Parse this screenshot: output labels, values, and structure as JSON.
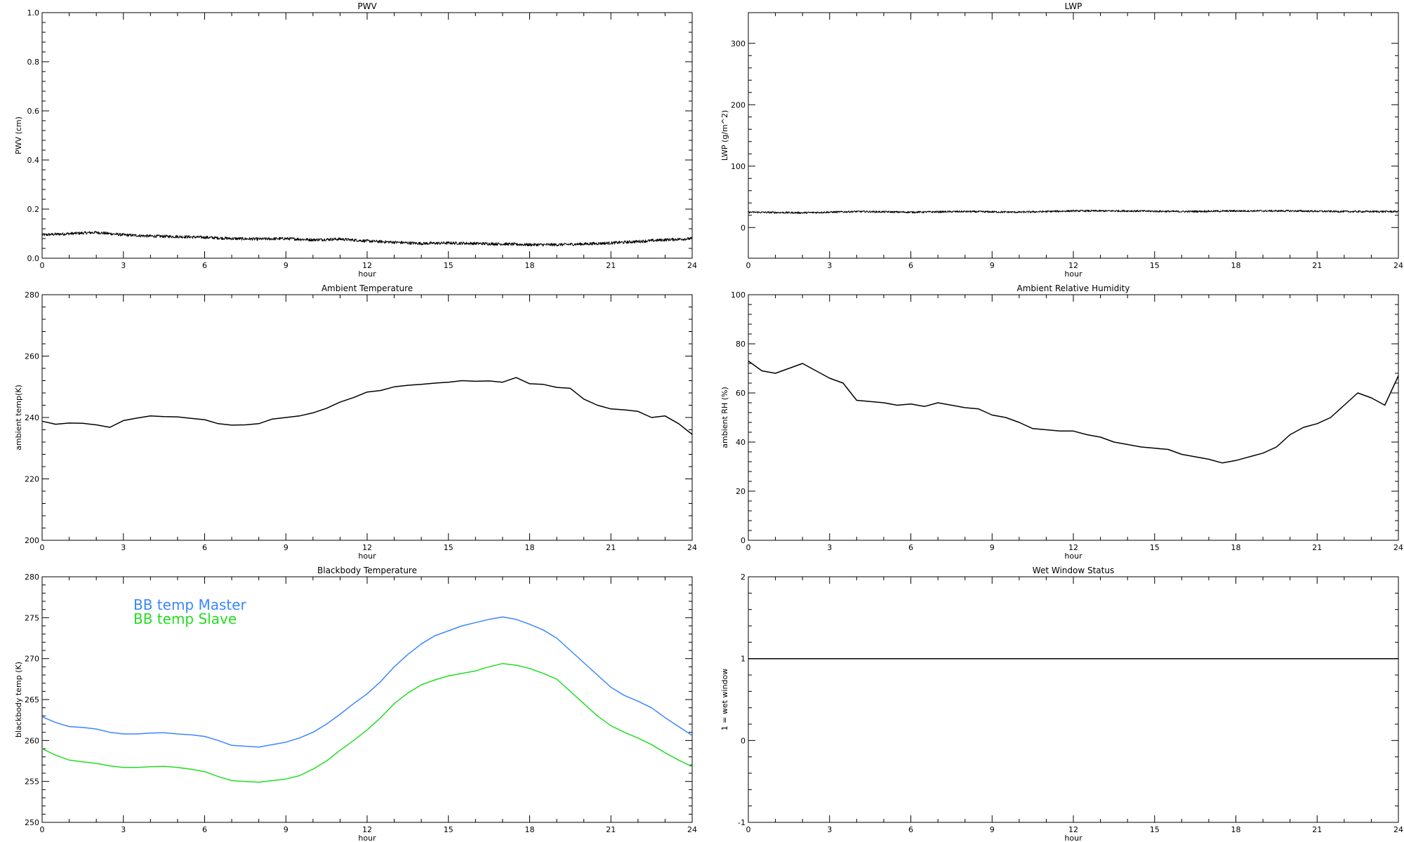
{
  "chart_data": [
    {
      "id": "pwv",
      "type": "line",
      "title": "PWV",
      "xlabel": "hour",
      "ylabel": "PWV (cm)",
      "xlim": [
        0,
        24
      ],
      "ylim": [
        0,
        1.0
      ],
      "xticks": [
        0,
        3,
        6,
        9,
        12,
        15,
        18,
        21,
        24
      ],
      "yticks": [
        "0.0",
        "0.2",
        "0.4",
        "0.6",
        "0.8",
        "1.0"
      ],
      "series": [
        {
          "color": "#000000",
          "noise": 0.006,
          "x": [
            0,
            1,
            2,
            2.5,
            3,
            4,
            5,
            6,
            7,
            8,
            9,
            10,
            11,
            12,
            13,
            14,
            15,
            16,
            17,
            18,
            19,
            20,
            21,
            22,
            23,
            24
          ],
          "y": [
            0.095,
            0.1,
            0.105,
            0.1,
            0.095,
            0.09,
            0.088,
            0.085,
            0.08,
            0.078,
            0.08,
            0.075,
            0.078,
            0.07,
            0.065,
            0.06,
            0.062,
            0.06,
            0.058,
            0.055,
            0.055,
            0.058,
            0.062,
            0.068,
            0.075,
            0.08
          ]
        }
      ]
    },
    {
      "id": "lwp",
      "type": "line",
      "title": "LWP",
      "xlabel": "hour",
      "ylabel": "LWP (g/m^2)",
      "xlim": [
        0,
        24
      ],
      "ylim": [
        -50,
        350
      ],
      "xticks": [
        0,
        3,
        6,
        9,
        12,
        15,
        18,
        21,
        24
      ],
      "yticks": [
        "0",
        "100",
        "200",
        "300"
      ],
      "series": [
        {
          "color": "#000000",
          "noise": 1.5,
          "x": [
            0,
            2,
            4,
            6,
            8,
            10,
            12,
            14,
            16,
            18,
            20,
            22,
            24
          ],
          "y": [
            25,
            24,
            26,
            25,
            26,
            25,
            27,
            27,
            26,
            27,
            27,
            26,
            26
          ]
        }
      ]
    },
    {
      "id": "ambient-temp",
      "type": "line",
      "title": "Ambient Temperature",
      "xlabel": "hour",
      "ylabel": "ambient temp(K)",
      "xlim": [
        0,
        24
      ],
      "ylim": [
        200,
        280
      ],
      "xticks": [
        0,
        3,
        6,
        9,
        12,
        15,
        18,
        21,
        24
      ],
      "yticks": [
        "200",
        "220",
        "240",
        "260",
        "280"
      ],
      "series": [
        {
          "color": "#000000",
          "noise": 0,
          "x": [
            0,
            0.5,
            1,
            1.5,
            2,
            2.5,
            3,
            3.5,
            4,
            4.5,
            5,
            5.5,
            6,
            6.5,
            7,
            7.5,
            8,
            8.5,
            9,
            9.5,
            10,
            10.5,
            11,
            11.5,
            12,
            12.5,
            13,
            13.5,
            14,
            14.5,
            15,
            15.5,
            16,
            16.5,
            17,
            17.5,
            18,
            18.5,
            19,
            19.5,
            20,
            20.5,
            21,
            21.5,
            22,
            22.5,
            23,
            23.5,
            24
          ],
          "y": [
            238.8,
            237.8,
            238.2,
            238.1,
            237.6,
            236.8,
            239.0,
            239.8,
            240.5,
            240.3,
            240.2,
            239.7,
            239.3,
            238.0,
            237.5,
            237.6,
            238.0,
            239.5,
            240.0,
            240.5,
            241.5,
            243.0,
            245.0,
            246.5,
            248.3,
            248.8,
            250.0,
            250.5,
            250.8,
            251.2,
            251.5,
            252.0,
            251.8,
            251.9,
            251.5,
            253.0,
            251.0,
            250.8,
            249.8,
            249.5,
            246.0,
            244.0,
            242.8,
            242.5,
            242.0,
            240.0,
            240.5,
            238.0,
            234.5
          ]
        }
      ]
    },
    {
      "id": "ambient-rh",
      "type": "line",
      "title": "Ambient Relative Humidity",
      "xlabel": "hour",
      "ylabel": "ambient RH (%)",
      "xlim": [
        0,
        24
      ],
      "ylim": [
        0,
        100
      ],
      "xticks": [
        0,
        3,
        6,
        9,
        12,
        15,
        18,
        21,
        24
      ],
      "yticks": [
        "0",
        "20",
        "40",
        "60",
        "80",
        "100"
      ],
      "series": [
        {
          "color": "#000000",
          "noise": 0,
          "x": [
            0,
            0.5,
            1,
            1.5,
            2,
            2.5,
            3,
            3.5,
            4,
            4.5,
            5,
            5.5,
            6,
            6.5,
            7,
            7.5,
            8,
            8.5,
            9,
            9.5,
            10,
            10.5,
            11,
            11.5,
            12,
            12.5,
            13,
            13.5,
            14,
            14.5,
            15,
            15.5,
            16,
            16.5,
            17,
            17.5,
            18,
            18.5,
            19,
            19.5,
            20,
            20.5,
            21,
            21.5,
            22,
            22.5,
            23,
            23.5,
            24
          ],
          "y": [
            73.0,
            69.0,
            68.0,
            70.0,
            72.0,
            69.0,
            66.0,
            64.0,
            57.0,
            56.5,
            56.0,
            55.0,
            55.5,
            54.5,
            56.0,
            55.0,
            54.0,
            53.5,
            51.0,
            50.0,
            48.0,
            45.5,
            45.0,
            44.5,
            44.5,
            43.0,
            42.0,
            40.0,
            39.0,
            38.0,
            37.5,
            37.0,
            35.0,
            34.0,
            33.0,
            31.5,
            32.5,
            34.0,
            35.5,
            38.0,
            43.0,
            46.0,
            47.5,
            50.0,
            55.0,
            60.0,
            58.0,
            55.0,
            67.0
          ]
        }
      ]
    },
    {
      "id": "bb-temp",
      "type": "line",
      "title": "Blackbody Temperature",
      "xlabel": "hour",
      "ylabel": "blackbody temp (K)",
      "xlim": [
        0,
        24
      ],
      "ylim": [
        250,
        280
      ],
      "xticks": [
        0,
        3,
        6,
        9,
        12,
        15,
        18,
        21,
        24
      ],
      "yticks": [
        "250",
        "255",
        "260",
        "265",
        "270",
        "275",
        "280"
      ],
      "series": [
        {
          "name": "BB temp Master",
          "color": "#3a86ff",
          "noise": 0,
          "x": [
            0,
            0.5,
            1,
            1.5,
            2,
            2.5,
            3,
            3.5,
            4,
            4.5,
            5,
            5.5,
            6,
            6.5,
            7,
            7.5,
            8,
            8.5,
            9,
            9.5,
            10,
            10.5,
            11,
            11.5,
            12,
            12.5,
            13,
            13.5,
            14,
            14.5,
            15,
            15.5,
            16,
            16.5,
            17,
            17.5,
            18,
            18.5,
            19,
            19.5,
            20,
            20.5,
            21,
            21.5,
            22,
            22.5,
            23,
            23.5,
            24
          ],
          "y": [
            262.9,
            262.2,
            261.7,
            261.6,
            261.4,
            261.0,
            260.8,
            260.8,
            260.9,
            260.95,
            260.8,
            260.7,
            260.5,
            260.0,
            259.4,
            259.3,
            259.2,
            259.5,
            259.8,
            260.3,
            261.0,
            262.0,
            263.2,
            264.5,
            265.7,
            267.2,
            269.0,
            270.5,
            271.8,
            272.8,
            273.4,
            274.0,
            274.4,
            274.8,
            275.1,
            274.8,
            274.2,
            273.5,
            272.5,
            271.0,
            269.5,
            268.0,
            266.5,
            265.5,
            264.8,
            264.0,
            262.8,
            261.7,
            260.6
          ]
        },
        {
          "name": "BB temp Slave",
          "color": "#22dd22",
          "noise": 0,
          "x": [
            0,
            0.5,
            1,
            1.5,
            2,
            2.5,
            3,
            3.5,
            4,
            4.5,
            5,
            5.5,
            6,
            6.5,
            7,
            7.5,
            8,
            8.5,
            9,
            9.5,
            10,
            10.5,
            11,
            11.5,
            12,
            12.5,
            13,
            13.5,
            14,
            14.5,
            15,
            15.5,
            16,
            16.5,
            17,
            17.5,
            18,
            18.5,
            19,
            19.5,
            20,
            20.5,
            21,
            21.5,
            22,
            22.5,
            23,
            23.5,
            24
          ],
          "y": [
            259.0,
            258.2,
            257.6,
            257.4,
            257.2,
            256.9,
            256.7,
            256.7,
            256.8,
            256.85,
            256.7,
            256.5,
            256.2,
            255.6,
            255.1,
            255.0,
            254.9,
            255.1,
            255.3,
            255.7,
            256.5,
            257.5,
            258.8,
            260.0,
            261.3,
            262.8,
            264.5,
            265.8,
            266.8,
            267.4,
            267.9,
            268.2,
            268.5,
            269.0,
            269.4,
            269.2,
            268.8,
            268.2,
            267.5,
            266.0,
            264.5,
            263.0,
            261.8,
            261.0,
            260.3,
            259.5,
            258.5,
            257.6,
            256.8
          ]
        }
      ]
    },
    {
      "id": "wet-window",
      "type": "line",
      "title": "Wet Window Status",
      "xlabel": "hour",
      "ylabel": "1 = wet window",
      "xlim": [
        0,
        24
      ],
      "ylim": [
        -1,
        2
      ],
      "xticks": [
        0,
        3,
        6,
        9,
        12,
        15,
        18,
        21,
        24
      ],
      "yticks": [
        "-1",
        "0",
        "1",
        "2"
      ],
      "series": [
        {
          "color": "#000000",
          "noise": 0,
          "x": [
            0,
            24
          ],
          "y": [
            1,
            1
          ]
        }
      ]
    }
  ]
}
